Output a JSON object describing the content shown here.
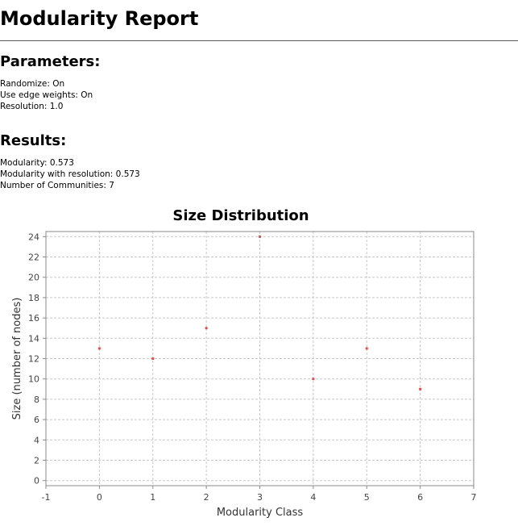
{
  "report": {
    "title": "Modularity Report"
  },
  "parameters": {
    "heading": "Parameters:",
    "lines": [
      "Randomize: On",
      "Use edge weights: On",
      "Resolution: 1.0"
    ]
  },
  "results": {
    "heading": "Results:",
    "lines": [
      "Modularity: 0.573",
      "Modularity with resolution: 0.573",
      "Number of Communities: 7"
    ]
  },
  "chart_data": {
    "type": "scatter",
    "title": "Size Distribution",
    "xlabel": "Modularity Class",
    "ylabel": "Size (number of nodes)",
    "xlim": [
      -1,
      7
    ],
    "ylim": [
      -0.5,
      24.5
    ],
    "x_ticks": [
      -1,
      0,
      1,
      2,
      3,
      4,
      5,
      6,
      7
    ],
    "y_ticks": [
      0,
      2,
      4,
      6,
      8,
      10,
      12,
      14,
      16,
      18,
      20,
      22,
      24
    ],
    "grid": true,
    "legend": "none",
    "marker_color": "#e05050",
    "series": [
      {
        "x": [
          0,
          1,
          2,
          3,
          4,
          5,
          6
        ],
        "y": [
          13,
          12,
          15,
          24,
          10,
          13,
          9
        ]
      }
    ]
  }
}
